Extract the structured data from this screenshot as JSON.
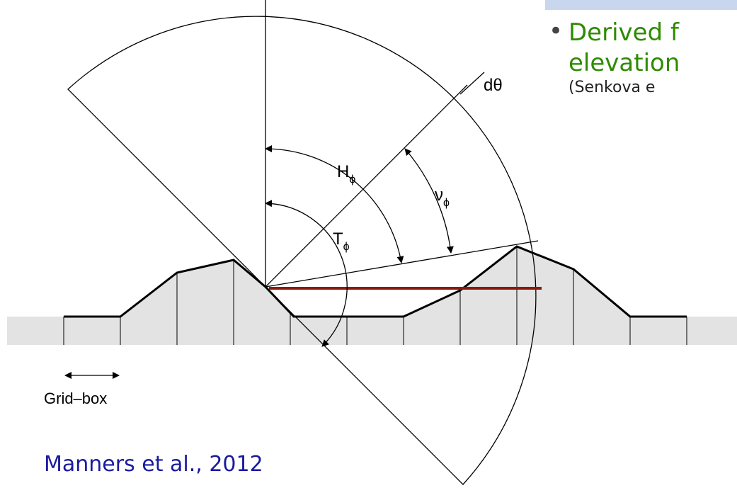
{
  "bullet": {
    "line1": "Derived f",
    "line2": "elevation",
    "citation": "(Senkova e"
  },
  "labels": {
    "dtheta": "dθ",
    "H": "H",
    "H_sub": "ϕ",
    "nu": "ν",
    "nu_sub": "ϕ",
    "T": "T",
    "T_sub": "ϕ",
    "gridbox": "Grid–box"
  },
  "source": "Manners et al., 2012"
}
